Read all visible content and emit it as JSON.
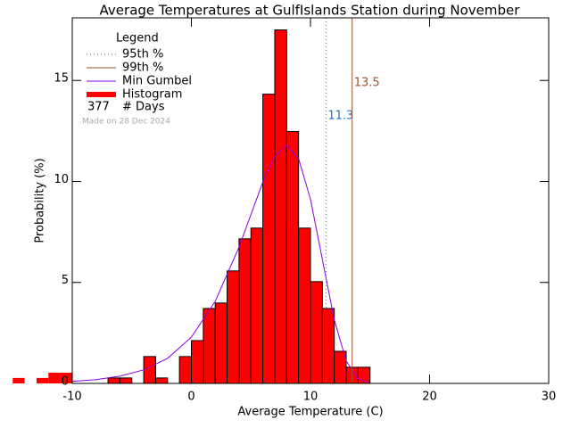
{
  "chart_data": {
    "type": "histogram",
    "title": "Average Temperatures at GulfIslands Station during November",
    "xlabel": "Average Temperature (C)",
    "ylabel": "Probability (%)",
    "bins": [
      -15,
      -14,
      -13,
      -12,
      -11,
      -10,
      -9,
      -8,
      -7,
      -6,
      -5,
      -4,
      -3,
      -2,
      -1,
      0,
      1,
      2,
      3,
      4,
      5,
      6,
      7,
      8,
      9,
      10,
      11,
      12,
      13,
      14,
      15
    ],
    "counts": [
      0.27,
      0,
      0.27,
      0.53,
      0.53,
      0,
      0,
      0,
      0.27,
      0.27,
      0,
      1.33,
      0.27,
      0,
      1.33,
      2.12,
      3.71,
      3.98,
      5.57,
      7.16,
      7.69,
      14.32,
      17.5,
      12.47,
      7.69,
      5.04,
      3.71,
      1.59,
      0.8,
      0.8
    ],
    "color": "#ff0000",
    "histogram_name": "Histogram",
    "curve": {
      "name": "Min Gumbel",
      "color": "#8800dd",
      "x": [
        -10,
        -8,
        -6,
        -4,
        -2,
        0,
        2,
        4,
        6,
        7,
        8,
        9,
        10,
        11,
        12,
        13,
        14,
        15
      ],
      "y": [
        0.1,
        0.19,
        0.36,
        0.67,
        1.24,
        2.29,
        4.06,
        6.75,
        9.97,
        11.26,
        11.79,
        11.13,
        9.12,
        6.13,
        3.15,
        1.11,
        0.24,
        0.02
      ]
    },
    "vlines": [
      {
        "name": "95th %",
        "value": 11.3,
        "color": "#1f77c8",
        "style": "dotted"
      },
      {
        "name": "99th %",
        "value": 13.5,
        "color": "#a0522d",
        "style": "solid"
      }
    ],
    "legend_title": "Legend",
    "days": 377,
    "days_label": "# Days",
    "note": "Made on 28 Dec 2024",
    "xlim": [
      -10,
      30
    ],
    "xticks": [
      -10,
      0,
      10,
      20,
      30
    ],
    "ylim": [
      0,
      18.1
    ],
    "yticks": [
      0,
      5,
      10,
      15
    ]
  }
}
